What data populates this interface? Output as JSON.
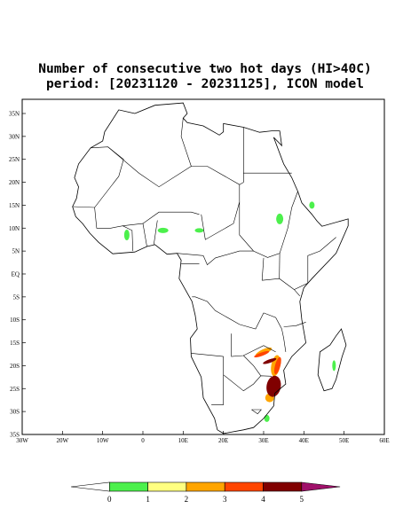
{
  "title": [
    "Number of consecutive two hot days (HI>40C)",
    "period: [20231120 - 20231125], ICON model"
  ],
  "lat_labels": [
    "35N",
    "30N",
    "25N",
    "20N",
    "15N",
    "10N",
    "5N",
    "EQ",
    "5S",
    "10S",
    "15S",
    "20S",
    "25S",
    "30S",
    "35S"
  ],
  "lon_labels": [
    "30W",
    "20W",
    "10W",
    "0",
    "10E",
    "20E",
    "30E",
    "40E",
    "50E",
    "60E"
  ],
  "colorbar": {
    "labels": [
      "0",
      "1",
      "2",
      "3",
      "4",
      "5"
    ],
    "colors": [
      "#ffffff",
      "#4cf04c",
      "#ffff80",
      "#ffa500",
      "#ff4500",
      "#800000",
      "#a0106a"
    ]
  }
}
